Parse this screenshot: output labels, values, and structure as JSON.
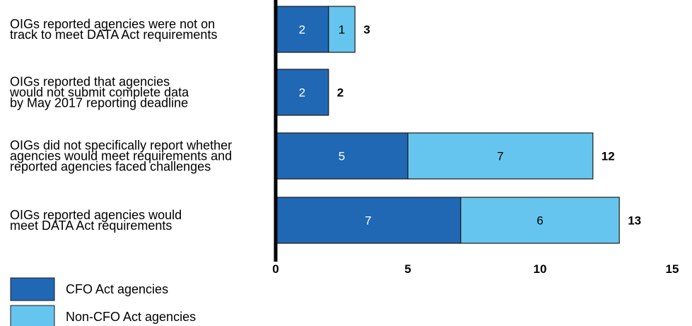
{
  "chart_data": {
    "type": "bar",
    "orientation": "horizontal",
    "stacked": true,
    "categories": [
      [
        "OIGs reported agencies were not on",
        "track to meet DATA Act requirements"
      ],
      [
        "OIGs reported that agencies",
        "would not submit complete data",
        "by May 2017 reporting deadline"
      ],
      [
        "OIGs did not specifically report whether",
        "agencies would meet requirements and",
        "reported agencies faced challenges"
      ],
      [
        "OIGs reported agencies would",
        "meet DATA Act requirements"
      ]
    ],
    "series": [
      {
        "name": "CFO Act agencies",
        "values": [
          2,
          2,
          5,
          7
        ],
        "color": "#2068b4",
        "label_color": "#ffffff"
      },
      {
        "name": "Non-CFO Act agencies",
        "values": [
          1,
          0,
          7,
          6
        ],
        "color": "#66c5ee",
        "label_color": "#000000"
      }
    ],
    "totals": [
      3,
      2,
      12,
      13
    ],
    "xlim": [
      0,
      15
    ],
    "xticks": [
      "0",
      "5",
      "10",
      "15"
    ],
    "grid": false,
    "legend_position": "bottom-left",
    "title": "",
    "xlabel": "",
    "ylabel": ""
  }
}
